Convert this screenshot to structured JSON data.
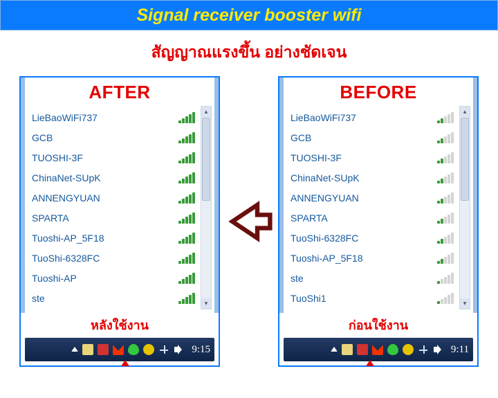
{
  "banner": {
    "title": "Signal receiver booster wifi"
  },
  "subheading": "สัญญาณแรงขึ้น อย่างชัดเจน",
  "arrow": {
    "stroke": "#6a0e0e",
    "fill": "#ffffff"
  },
  "after": {
    "heading": "AFTER",
    "caption": "หลังใช้งาน",
    "clock": "9:15",
    "networks": [
      {
        "name": "LieBaoWiFi737",
        "bars": 5
      },
      {
        "name": "GCB",
        "bars": 5
      },
      {
        "name": "TUOSHI-3F",
        "bars": 5
      },
      {
        "name": "ChinaNet-SUpK",
        "bars": 5
      },
      {
        "name": "ANNENGYUAN",
        "bars": 5
      },
      {
        "name": "SPARTA",
        "bars": 5
      },
      {
        "name": "Tuoshi-AP_5F18",
        "bars": 5
      },
      {
        "name": "TuoShi-6328FC",
        "bars": 5
      },
      {
        "name": "Tuoshi-AP",
        "bars": 5
      },
      {
        "name": "ste",
        "bars": 5
      }
    ]
  },
  "before": {
    "heading": "BEFORE",
    "caption": "ก่อนใช้งาน",
    "clock": "9:11",
    "networks": [
      {
        "name": "LieBaoWiFi737",
        "bars": 2
      },
      {
        "name": "GCB",
        "bars": 2
      },
      {
        "name": "TUOSHI-3F",
        "bars": 2
      },
      {
        "name": "ChinaNet-SUpK",
        "bars": 2
      },
      {
        "name": "ANNENGYUAN",
        "bars": 2
      },
      {
        "name": "SPARTA",
        "bars": 2
      },
      {
        "name": "TuoShi-6328FC",
        "bars": 2
      },
      {
        "name": "Tuoshi-AP_5F18",
        "bars": 2
      },
      {
        "name": "ste",
        "bars": 1
      },
      {
        "name": "TuoShi1",
        "bars": 1
      }
    ]
  },
  "colors": {
    "banner_bg": "#0a7bff",
    "banner_text": "#ffeb00",
    "accent_red": "#e30000",
    "network_text": "#15599d",
    "signal_on": "#3a9b3a",
    "signal_off": "#d4d4d4",
    "taskbar_top": "#233a63",
    "taskbar_bottom": "#0e2448"
  }
}
